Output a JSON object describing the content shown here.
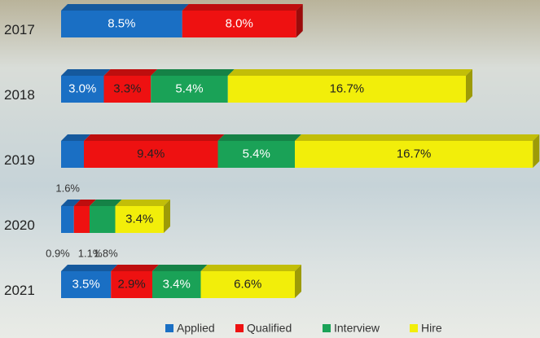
{
  "chart_data": {
    "type": "stacked-bar-3d",
    "categories": [
      "2017",
      "2018",
      "2019",
      "2020",
      "2021"
    ],
    "series": [
      {
        "name": "Applied",
        "color": "#1a6fc4",
        "values": [
          8.5,
          3.0,
          1.6,
          0.9,
          3.5
        ],
        "value_labels": [
          "8.5%",
          "3.0%",
          "1.6%",
          "0.9%",
          "3.5%"
        ]
      },
      {
        "name": "Qualified",
        "color": "#ee1111",
        "values": [
          8.0,
          3.3,
          9.4,
          1.1,
          2.9
        ],
        "value_labels": [
          "8.0%",
          "3.3%",
          "9.4%",
          "1.1%",
          "2.9%"
        ]
      },
      {
        "name": "Interview",
        "color": "#1aa257",
        "values": [
          null,
          5.4,
          5.4,
          1.8,
          3.4
        ],
        "value_labels": [
          null,
          "5.4%",
          "5.4%",
          "1.8%",
          "3.4%"
        ]
      },
      {
        "name": "Hire",
        "color": "#f2ee0a",
        "values": [
          null,
          16.7,
          16.7,
          3.4,
          6.6
        ],
        "value_labels": [
          null,
          "16.7%",
          "16.7%",
          "3.4%",
          "6.6%"
        ]
      }
    ]
  }
}
